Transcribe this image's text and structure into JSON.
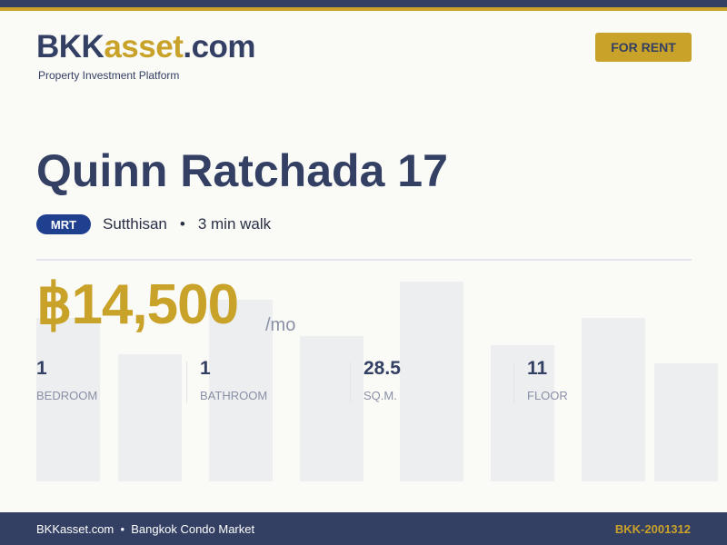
{
  "brand": {
    "logo_part1": "BKK",
    "logo_part2": "asset",
    "logo_part3": ".com",
    "tagline": "Property Investment Platform"
  },
  "badge": "FOR RENT",
  "listing": {
    "title": "Quinn Ratchada 17",
    "transit_type": "MRT",
    "station": "Sutthisan",
    "separator": "•",
    "walk": "3 min walk",
    "price": "฿14,500",
    "price_unit": "/mo"
  },
  "stats": [
    {
      "value": "1",
      "label": "BEDROOM"
    },
    {
      "value": "1",
      "label": "BATHROOM"
    },
    {
      "value": "28.5",
      "label": "SQ.M."
    },
    {
      "value": "11",
      "label": "FLOOR"
    }
  ],
  "footer": {
    "left": "BKKasset.com  •  Bangkok Condo Market",
    "listing_id": "BKK-2001312"
  },
  "colors": {
    "navy": "#333f63",
    "gold": "#c9a22a",
    "mrt_blue": "#1f3f8f"
  }
}
